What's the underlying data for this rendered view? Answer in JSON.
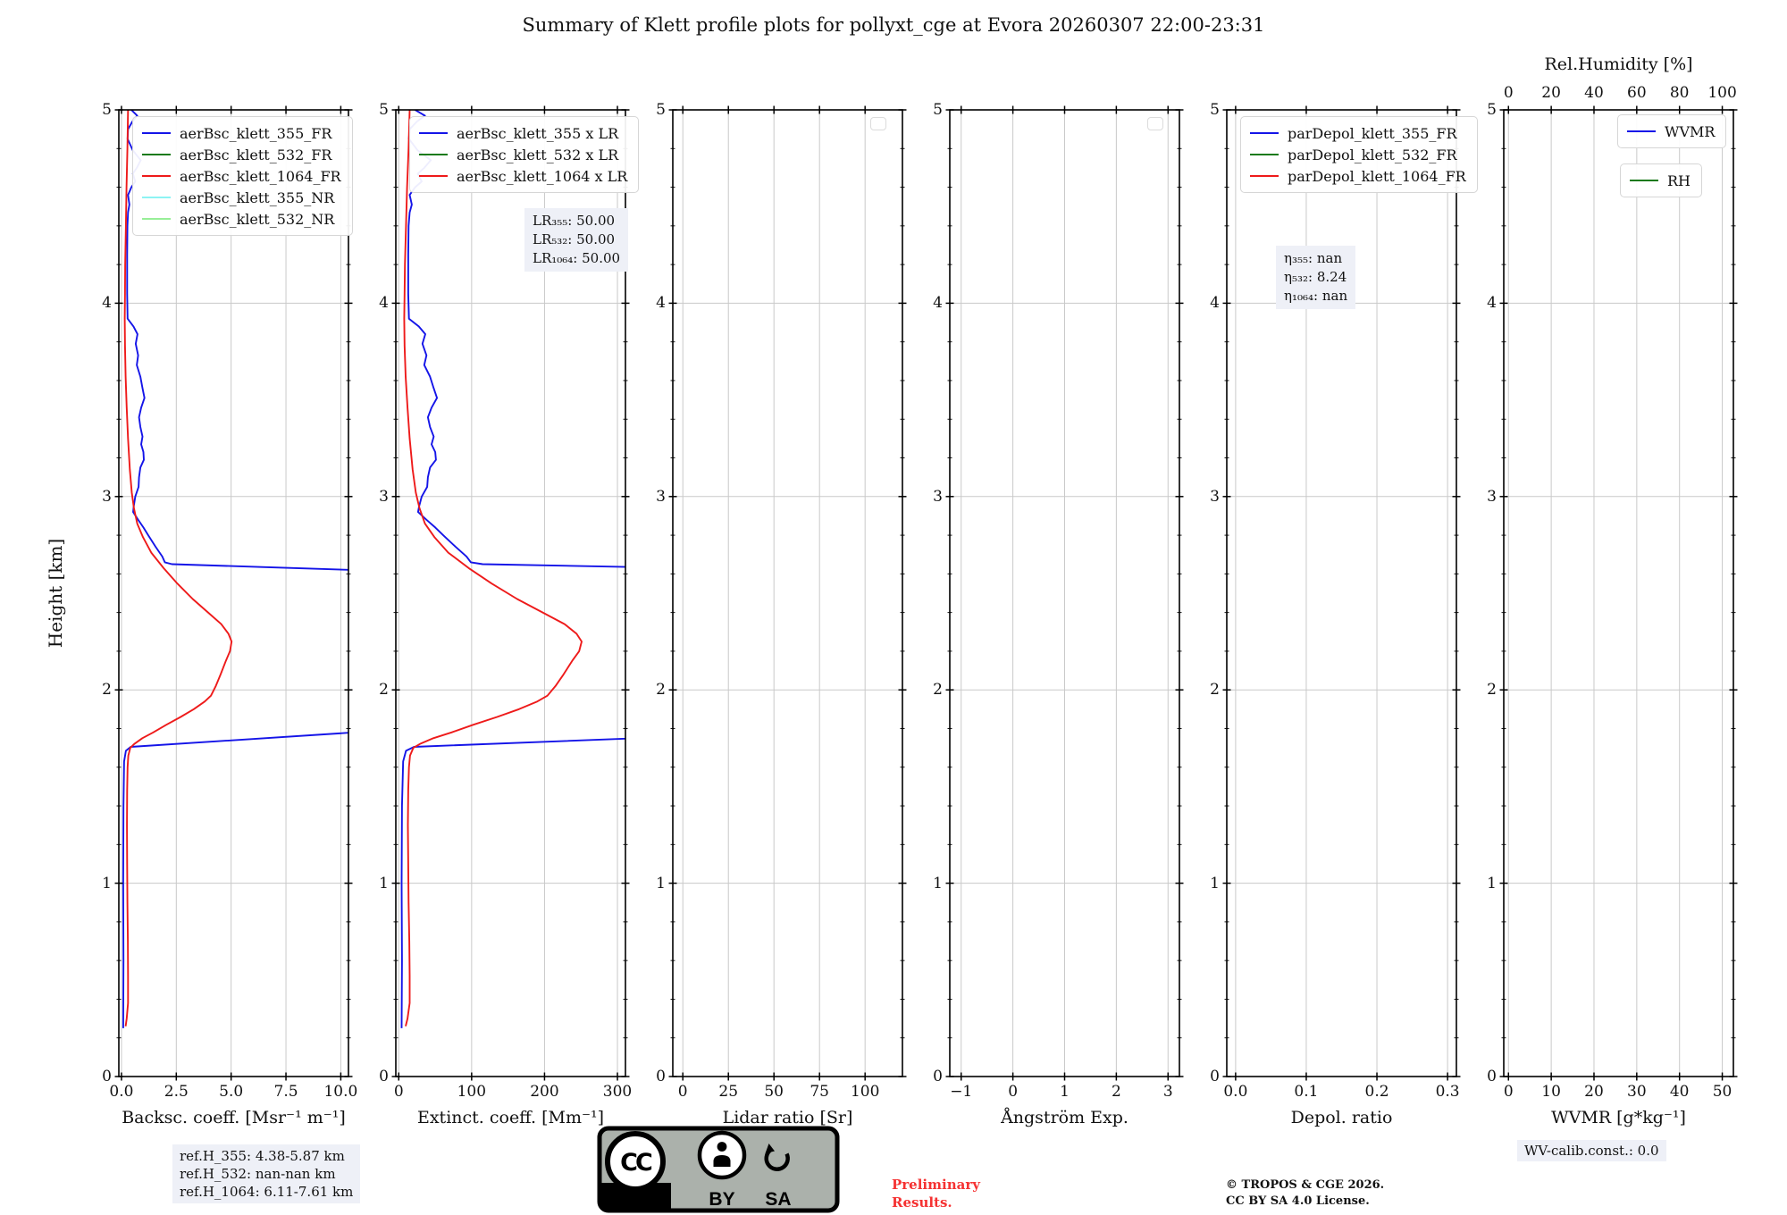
{
  "title": "Summary of Klett profile plots for pollyxt_cge at Evora 20260307 22:00-23:31",
  "ylabel": "Height [km]",
  "footer": {
    "ref_heights": [
      "ref.H_355: 4.38-5.87 km",
      "ref.H_532: nan-nan km",
      "ref.H_1064: 6.11-7.61 km"
    ],
    "license_badge": {
      "cc": "CC",
      "by": "BY",
      "sa": "SA"
    },
    "preliminary": [
      "Preliminary",
      "Results."
    ],
    "copyright": [
      "© TROPOS & CGE 2026.",
      "CC BY SA 4.0 License."
    ],
    "wv_calib": "WV-calib.const.: 0.0"
  },
  "palette": {
    "blue": "#1414e8",
    "green": "#1a7a1a",
    "red": "#ee1a1a",
    "cyan": "#8df3f3",
    "lightgreen": "#98ef98",
    "grid": "#c9c9c9"
  },
  "chart_data": {
    "type": "line",
    "ylim": [
      0,
      5
    ],
    "yticks": [
      "0",
      "1",
      "2",
      "3",
      "4",
      "5"
    ],
    "grid": true,
    "plots": [
      {
        "id": "backscatter",
        "xlabel": "Backsc. coeff. [Msr⁻¹ m⁻¹]",
        "xlim": [
          -0.12,
          10.35
        ],
        "xticks": [
          0,
          2.5,
          5,
          7.5,
          10
        ],
        "xtick_labels": [
          "0.0",
          "2.5",
          "5.0",
          "7.5",
          "10.0"
        ],
        "legends": [
          {
            "x": 15,
            "y": 7,
            "items": [
              {
                "label": "aerBsc_klett_355_FR",
                "color": "#1414e8"
              },
              {
                "label": "aerBsc_klett_532_FR",
                "color": "#1a7a1a"
              },
              {
                "label": "aerBsc_klett_1064_FR",
                "color": "#ee1a1a"
              },
              {
                "label": "aerBsc_klett_355_NR",
                "color": "#8df3f3"
              },
              {
                "label": "aerBsc_klett_532_NR",
                "color": "#98ef98"
              }
            ]
          }
        ],
        "series": [
          {
            "name": "aerBsc_klett_355_FR",
            "color": "#1414e8",
            "points": [
              [
                0.45,
                5.0
              ],
              [
                0.72,
                4.97
              ],
              [
                0.5,
                4.94
              ],
              [
                0.3,
                4.9
              ],
              [
                0.28,
                4.85
              ],
              [
                0.52,
                4.79
              ],
              [
                0.88,
                4.74
              ],
              [
                0.7,
                4.7
              ],
              [
                0.52,
                4.67
              ],
              [
                0.63,
                4.63
              ],
              [
                0.45,
                4.6
              ],
              [
                0.3,
                4.56
              ],
              [
                0.36,
                4.51
              ],
              [
                0.3,
                4.47
              ],
              [
                0.27,
                4.4
              ],
              [
                0.26,
                4.25
              ],
              [
                0.26,
                4.05
              ],
              [
                0.28,
                3.92
              ],
              [
                0.55,
                3.88
              ],
              [
                0.73,
                3.84
              ],
              [
                0.65,
                3.79
              ],
              [
                0.76,
                3.73
              ],
              [
                0.7,
                3.68
              ],
              [
                0.86,
                3.62
              ],
              [
                0.96,
                3.56
              ],
              [
                1.05,
                3.51
              ],
              [
                0.9,
                3.46
              ],
              [
                0.8,
                3.41
              ],
              [
                0.86,
                3.36
              ],
              [
                0.96,
                3.31
              ],
              [
                0.9,
                3.27
              ],
              [
                1.0,
                3.23
              ],
              [
                1.02,
                3.19
              ],
              [
                0.86,
                3.15
              ],
              [
                0.8,
                3.1
              ],
              [
                0.78,
                3.05
              ],
              [
                0.63,
                3.0
              ],
              [
                0.56,
                2.95
              ],
              [
                0.53,
                2.92
              ],
              [
                0.76,
                2.88
              ],
              [
                1.0,
                2.84
              ],
              [
                1.22,
                2.8
              ],
              [
                1.56,
                2.74
              ],
              [
                1.86,
                2.69
              ],
              [
                1.98,
                2.66
              ],
              [
                2.3,
                2.65
              ],
              [
                12.0,
                2.615
              ],
              [
                12.0,
                1.79
              ],
              [
                0.42,
                1.705
              ],
              [
                0.2,
                1.685
              ],
              [
                0.12,
                1.63
              ],
              [
                0.09,
                1.4
              ],
              [
                0.08,
                1.0
              ],
              [
                0.09,
                0.6
              ],
              [
                0.08,
                0.25
              ]
            ]
          },
          {
            "name": "aerBsc_klett_1064_FR",
            "color": "#ee1a1a",
            "points": [
              [
                0.3,
                5.0
              ],
              [
                0.27,
                4.8
              ],
              [
                0.23,
                4.6
              ],
              [
                0.2,
                4.4
              ],
              [
                0.17,
                4.2
              ],
              [
                0.16,
                4.05
              ],
              [
                0.15,
                3.92
              ],
              [
                0.16,
                3.78
              ],
              [
                0.19,
                3.62
              ],
              [
                0.24,
                3.46
              ],
              [
                0.3,
                3.3
              ],
              [
                0.38,
                3.14
              ],
              [
                0.47,
                3.02
              ],
              [
                0.57,
                2.94
              ],
              [
                0.72,
                2.86
              ],
              [
                0.98,
                2.79
              ],
              [
                1.36,
                2.71
              ],
              [
                1.92,
                2.63
              ],
              [
                2.55,
                2.55
              ],
              [
                3.25,
                2.47
              ],
              [
                3.95,
                2.4
              ],
              [
                4.55,
                2.34
              ],
              [
                4.88,
                2.29
              ],
              [
                5.02,
                2.25
              ],
              [
                4.95,
                2.2
              ],
              [
                4.76,
                2.15
              ],
              [
                4.52,
                2.08
              ],
              [
                4.3,
                2.02
              ],
              [
                4.08,
                1.97
              ],
              [
                3.8,
                1.94
              ],
              [
                3.3,
                1.9
              ],
              [
                2.7,
                1.86
              ],
              [
                2.05,
                1.82
              ],
              [
                1.45,
                1.78
              ],
              [
                0.95,
                1.75
              ],
              [
                0.58,
                1.72
              ],
              [
                0.4,
                1.7
              ],
              [
                0.31,
                1.66
              ],
              [
                0.28,
                1.6
              ],
              [
                0.26,
                1.48
              ],
              [
                0.25,
                1.3
              ],
              [
                0.26,
                1.1
              ],
              [
                0.27,
                0.9
              ],
              [
                0.29,
                0.7
              ],
              [
                0.3,
                0.52
              ],
              [
                0.3,
                0.38
              ],
              [
                0.24,
                0.3
              ],
              [
                0.19,
                0.26
              ]
            ]
          }
        ]
      },
      {
        "id": "extinction",
        "xlabel": "Extinct. coeff. [Mm⁻¹]",
        "xlim": [
          -4,
          311
        ],
        "xticks": [
          0,
          100,
          200,
          300
        ],
        "xtick_labels": [
          "0",
          "100",
          "200",
          "300"
        ],
        "legends": [
          {
            "x": 15,
            "y": 7,
            "items": [
              {
                "label": "aerBsc_klett_355 x LR",
                "color": "#1414e8"
              },
              {
                "label": "aerBsc_klett_532 x LR",
                "color": "#1a7a1a"
              },
              {
                "label": "aerBsc_klett_1064 x LR",
                "color": "#ee1a1a"
              }
            ]
          }
        ],
        "annotation": {
          "x": 144,
          "y": 110,
          "lines": [
            "LR₃₅₅: 50.00",
            "LR₅₃₂: 50.00",
            "LR₁₀₆₄: 50.00"
          ]
        },
        "lidar_ratio": {
          "LR355": 50.0,
          "LR532": 50.0,
          "LR1064": 50.0
        },
        "series": [
          {
            "name": "aerBsc_klett_355 x LR",
            "color": "#1414e8",
            "source": {
              "plot": 0,
              "series": 0,
              "x_scale": 50
            }
          },
          {
            "name": "aerBsc_klett_1064 x LR",
            "color": "#ee1a1a",
            "source": {
              "plot": 0,
              "series": 1,
              "x_scale": 50
            }
          }
        ]
      },
      {
        "id": "lidar-ratio",
        "xlabel": "Lidar ratio [Sr]",
        "xlim": [
          -5.5,
          120.5
        ],
        "xticks": [
          0,
          25,
          50,
          75,
          100
        ],
        "xtick_labels": [
          "0",
          "25",
          "50",
          "75",
          "100"
        ],
        "empty_legend": true,
        "series": []
      },
      {
        "id": "angstroem",
        "xlabel": "Ångström Exp.",
        "xlim": [
          -1.22,
          3.22
        ],
        "xticks": [
          -1,
          0,
          1,
          2,
          3
        ],
        "xtick_labels": [
          "−1",
          "0",
          "1",
          "2",
          "3"
        ],
        "empty_legend": true,
        "series": []
      },
      {
        "id": "depol-ratio",
        "xlabel": "Depol. ratio",
        "xlim": [
          -0.0125,
          0.3125
        ],
        "xticks": [
          0,
          0.1,
          0.2,
          0.3
        ],
        "xtick_labels": [
          "0.0",
          "0.1",
          "0.2",
          "0.3"
        ],
        "legends": [
          {
            "x": 15,
            "y": 7,
            "items": [
              {
                "label": "parDepol_klett_355_FR",
                "color": "#1414e8"
              },
              {
                "label": "parDepol_klett_532_FR",
                "color": "#1a7a1a"
              },
              {
                "label": "parDepol_klett_1064_FR",
                "color": "#ee1a1a"
              }
            ]
          }
        ],
        "annotation": {
          "x": 55,
          "y": 152,
          "lines": [
            "η₃₅₅: nan",
            "η₅₃₂: 8.24",
            "η₁₀₆₄: nan"
          ]
        },
        "eta": {
          "eta355": "nan",
          "eta532": "8.24",
          "eta1064": "nan"
        },
        "series": []
      },
      {
        "id": "wvmr",
        "xlabel": "WVMR [g*kg⁻¹]",
        "xlim": [
          -1.1,
          52.6
        ],
        "xticks": [
          0,
          10,
          20,
          30,
          40,
          50
        ],
        "xtick_labels": [
          "0",
          "10",
          "20",
          "30",
          "40",
          "50"
        ],
        "top_axis": {
          "label": "Rel.Humidity [%]",
          "scale": 2,
          "ticks": [
            0,
            20,
            40,
            60,
            80,
            100
          ],
          "tick_labels": [
            "0",
            "20",
            "40",
            "60",
            "80",
            "100"
          ]
        },
        "legends": [
          {
            "x": 127,
            "y": 5,
            "items": [
              {
                "label": "WVMR",
                "color": "#1414e8"
              }
            ]
          },
          {
            "x": 130,
            "y": 60,
            "items": [
              {
                "label": "RH",
                "color": "#1a7a1a"
              }
            ]
          }
        ],
        "series": []
      }
    ]
  }
}
